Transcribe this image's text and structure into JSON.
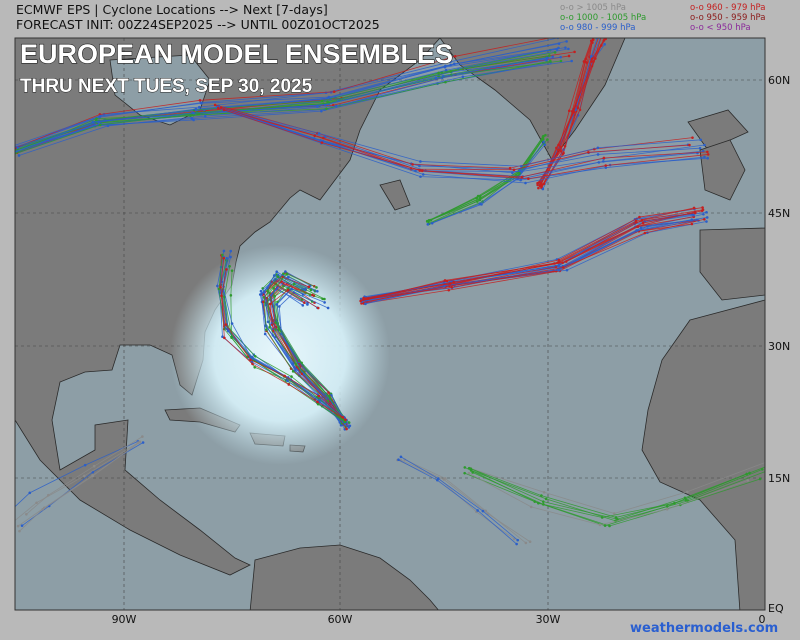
{
  "header": {
    "line1": "ECMWF EPS | Cyclone Locations --> Next [7-days]",
    "line2": "FORECAST INIT: 00Z24SEP2025 --> UNTIL 00Z01OCT2025"
  },
  "legend": [
    {
      "label": "o-o > 1005 hPa",
      "color": "#8a8a8a"
    },
    {
      "label": "o-o 1000 - 1005 hPa",
      "color": "#2e9a2e"
    },
    {
      "label": "o-o 980 - 999 hPa",
      "color": "#2b5fc9"
    },
    {
      "label": "o-o 960 - 979 hPa",
      "color": "#c42020"
    },
    {
      "label": "o-o 950 - 959 hPa",
      "color": "#8b1a1a"
    },
    {
      "label": "o-o < 950 hPa",
      "color": "#8a2a9a"
    }
  ],
  "overlay": {
    "title": "EUROPEAN MODEL ENSEMBLES",
    "subtitle": "THRU NEXT TUES, SEP 30, 2025"
  },
  "lat_labels": [
    "60N",
    "45N",
    "30N",
    "15N",
    "EQ"
  ],
  "lon_labels": [
    "90W",
    "60W",
    "30W",
    "0"
  ],
  "watermark": "weathermodels.com"
}
